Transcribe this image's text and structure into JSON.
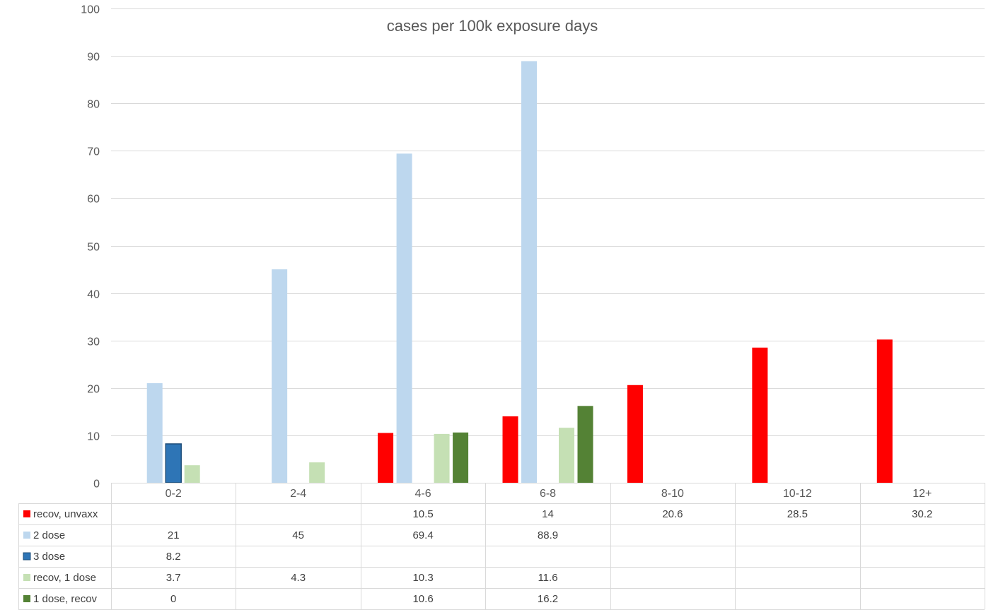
{
  "chart_data": {
    "type": "bar",
    "title": "cases per 100k exposure days",
    "xlabel": "",
    "ylabel": "",
    "ylim": [
      0,
      100
    ],
    "yticks": [
      0,
      10,
      20,
      30,
      40,
      50,
      60,
      70,
      80,
      90,
      100
    ],
    "grid": true,
    "legend": "data-table",
    "categories": [
      "0-2",
      "2-4",
      "4-6",
      "6-8",
      "8-10",
      "10-12",
      "12+"
    ],
    "series": [
      {
        "name": "recov, unvaxx",
        "color": "#ff0000",
        "values": [
          null,
          null,
          10.5,
          14,
          20.6,
          28.5,
          30.2
        ],
        "labels": [
          "",
          "",
          "10.5",
          "14",
          "20.6",
          "28.5",
          "30.2"
        ]
      },
      {
        "name": "2 dose",
        "color": "#bdd7ee",
        "values": [
          21,
          45,
          69.4,
          88.9,
          null,
          null,
          null
        ],
        "labels": [
          "21",
          "45",
          "69.4",
          "88.9",
          "",
          "",
          ""
        ]
      },
      {
        "name": "3 dose",
        "color": "#2e75b6",
        "border": "#1f4e79",
        "values": [
          8.2,
          null,
          null,
          null,
          null,
          null,
          null
        ],
        "labels": [
          "8.2",
          "",
          "",
          "",
          "",
          "",
          ""
        ]
      },
      {
        "name": "recov, 1 dose",
        "color": "#c5e0b4",
        "values": [
          3.7,
          4.3,
          10.3,
          11.6,
          null,
          null,
          null
        ],
        "labels": [
          "3.7",
          "4.3",
          "10.3",
          "11.6",
          "",
          "",
          ""
        ]
      },
      {
        "name": "1 dose, recov",
        "color": "#548235",
        "values": [
          0,
          null,
          10.6,
          16.2,
          null,
          null,
          null
        ],
        "labels": [
          "0",
          "",
          "10.6",
          "16.2",
          "",
          "",
          ""
        ]
      }
    ]
  }
}
